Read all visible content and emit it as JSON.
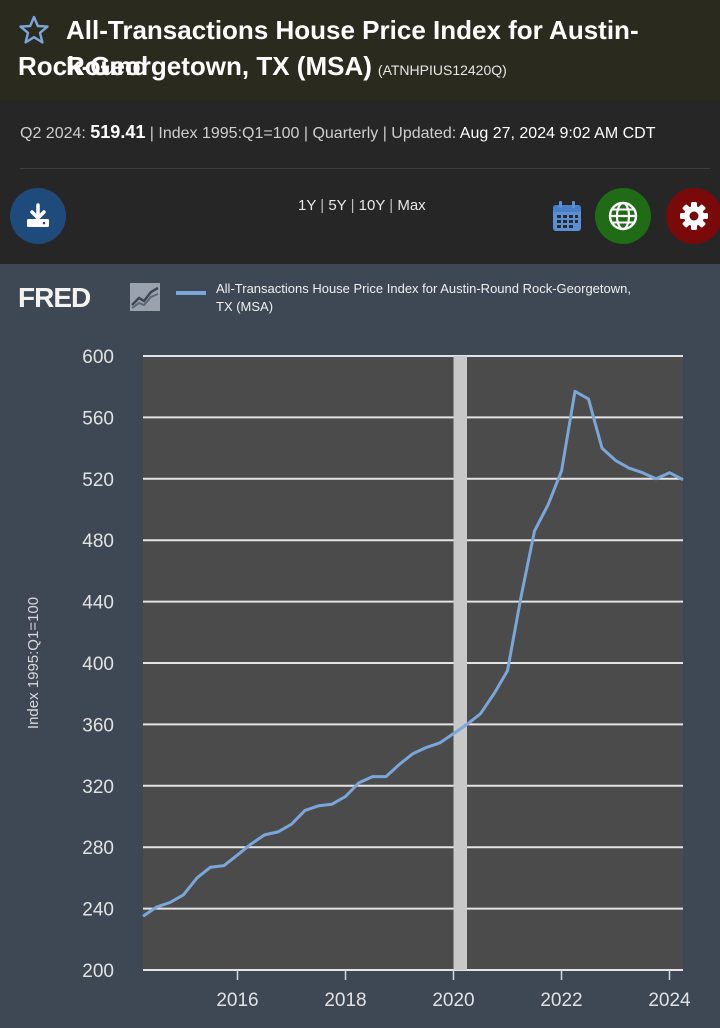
{
  "header": {
    "title_line1": "All-Transactions House Price Index for Austin-Round",
    "title_line2": "Rock-Georgetown, TX (MSA)",
    "series_id": "(ATNHPIUS12420Q)"
  },
  "meta": {
    "period_label": "Q2 2024:",
    "value": "519.41",
    "sep1": " | ",
    "units": "Index 1995:Q1=100",
    "sep2": " | ",
    "frequency": "Quarterly",
    "sep3": " | ",
    "updated_label": "Updated:",
    "updated_value": "Aug 27, 2024 9:02 AM CDT"
  },
  "toolbar": {
    "ranges": [
      "1Y",
      "5Y",
      "10Y",
      "Max"
    ]
  },
  "icons": {
    "star": "star-outline-icon",
    "download": "download-icon",
    "calendar": "calendar-icon",
    "globe": "globe-icon",
    "settings": "gear-icon"
  },
  "colors": {
    "series": "#7aa6da",
    "download_btn": "#1e4a7c",
    "globe_btn": "#1f6b16",
    "settings_btn": "#7a0a0a",
    "recession": "#c8c8c8"
  },
  "legend": {
    "logo": "FRED",
    "series_label": "All-Transactions House Price Index for Austin-Round Rock-Georgetown, TX (MSA)"
  },
  "chart_data": {
    "type": "line",
    "title": "",
    "ylabel": "Index 1995:Q1=100",
    "xlabel": "",
    "ylim": [
      200,
      600
    ],
    "yticks": [
      200,
      240,
      280,
      320,
      360,
      400,
      440,
      480,
      520,
      560,
      600
    ],
    "xlim": [
      2014.25,
      2024.25
    ],
    "xticks": [
      2016,
      2018,
      2020,
      2022,
      2024
    ],
    "recession_band": [
      2020.0,
      2020.25
    ],
    "series": [
      {
        "name": "All-Transactions House Price Index for Austin-Round Rock-Georgetown, TX (MSA)",
        "x": [
          2014.25,
          2014.5,
          2014.75,
          2015.0,
          2015.25,
          2015.5,
          2015.75,
          2016.0,
          2016.25,
          2016.5,
          2016.75,
          2017.0,
          2017.25,
          2017.5,
          2017.75,
          2018.0,
          2018.25,
          2018.5,
          2018.75,
          2019.0,
          2019.25,
          2019.5,
          2019.75,
          2020.0,
          2020.25,
          2020.5,
          2020.75,
          2021.0,
          2021.25,
          2021.5,
          2021.75,
          2022.0,
          2022.25,
          2022.5,
          2022.75,
          2023.0,
          2023.25,
          2023.5,
          2023.75,
          2024.0,
          2024.25
        ],
        "y": [
          235,
          241,
          244,
          249,
          260,
          267,
          268,
          275,
          282,
          288,
          290,
          295,
          304,
          307,
          308,
          313,
          322,
          326,
          326,
          334,
          341,
          345,
          348,
          354,
          360,
          367,
          380,
          395,
          443,
          486,
          503,
          525,
          577,
          572,
          540,
          532,
          527,
          524,
          520,
          524,
          519.41
        ]
      }
    ]
  }
}
